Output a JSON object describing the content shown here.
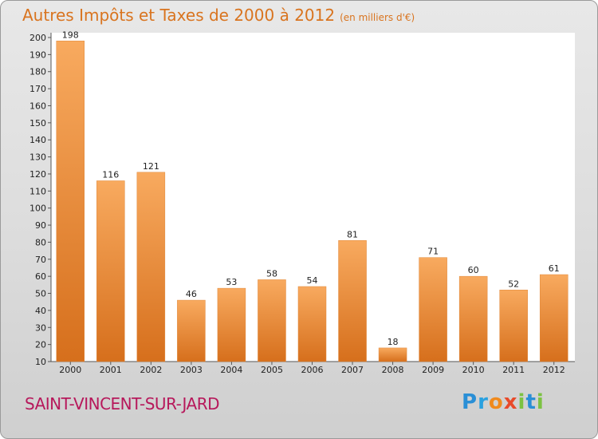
{
  "header": {
    "title": "Autres Impôts et Taxes de 2000 à 2012",
    "unit": "(en milliers d'€)"
  },
  "footer": {
    "location": "SAINT-VINCENT-SUR-JARD",
    "logo": "Proxiti"
  },
  "colors": {
    "bar_light": "#f7a55a",
    "bar_dark": "#d9741f",
    "title": "#d9741f",
    "location": "#b7185b"
  },
  "chart_data": {
    "type": "bar",
    "title": "Autres Impôts et Taxes de 2000 à 2012",
    "subtitle": "(en milliers d'€)",
    "xlabel": "",
    "ylabel": "",
    "categories": [
      "2000",
      "2001",
      "2002",
      "2003",
      "2004",
      "2005",
      "2006",
      "2007",
      "2008",
      "2009",
      "2010",
      "2011",
      "2012"
    ],
    "values": [
      198,
      116,
      121,
      46,
      53,
      58,
      54,
      81,
      18,
      71,
      60,
      52,
      61
    ],
    "ylim": [
      10,
      200
    ],
    "yticks": [
      10,
      20,
      30,
      40,
      50,
      60,
      70,
      80,
      90,
      100,
      110,
      120,
      130,
      140,
      150,
      160,
      170,
      180,
      190,
      200
    ],
    "grid": false,
    "legend": "none"
  }
}
